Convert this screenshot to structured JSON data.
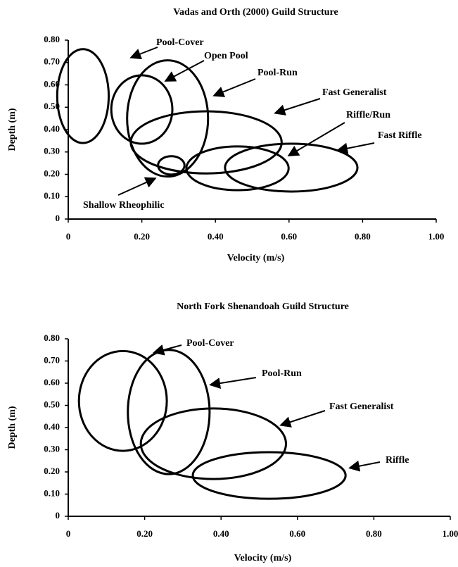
{
  "chart_data": [
    {
      "type": "ellipse",
      "title": "Vadas and Orth (2000) Guild Structure",
      "x_label": "Velocity (m/s)",
      "y_label": "Depth (m)",
      "color": "#000000",
      "xlim": [
        0,
        1
      ],
      "ylim": [
        0,
        0.8
      ],
      "xticks": [
        0,
        {
          "value": 0.2,
          "label": "0.20"
        },
        {
          "value": 0.4,
          "label": "0.40"
        },
        {
          "value": 0.6,
          "label": "0.60"
        },
        {
          "value": 0.8,
          "label": "0.80"
        },
        {
          "value": 1,
          "label": "1.00"
        }
      ],
      "yticks": [
        0,
        {
          "value": 0.1,
          "label": "0.10"
        },
        {
          "value": 0.2,
          "label": "0.20"
        },
        {
          "value": 0.3,
          "label": "0.30"
        },
        {
          "value": 0.4,
          "label": "0.40"
        },
        {
          "value": 0.5,
          "label": "0.50"
        },
        {
          "value": 0.6,
          "label": "0.60"
        },
        {
          "value": 0.7,
          "label": "0.70"
        },
        {
          "value": 0.8,
          "label": "0.80"
        }
      ],
      "series": [
        {
          "name": "Pool-Cover",
          "cx": 0.04,
          "cy": 0.55,
          "rx": 0.07,
          "ry": 0.21
        },
        {
          "name": "Open Pool",
          "cx": 0.2,
          "cy": 0.49,
          "rx": 0.083,
          "ry": 0.153
        },
        {
          "name": "Pool-Run",
          "cx": 0.27,
          "cy": 0.45,
          "rx": 0.11,
          "ry": 0.26
        },
        {
          "name": "Fast Generalist",
          "cx": 0.375,
          "cy": 0.343,
          "rx": 0.205,
          "ry": 0.139
        },
        {
          "name": "Riffle/Run",
          "cx": 0.46,
          "cy": 0.227,
          "rx": 0.139,
          "ry": 0.098
        },
        {
          "name": "Fast Riffle",
          "cx": 0.606,
          "cy": 0.23,
          "rx": 0.18,
          "ry": 0.107
        },
        {
          "name": "Shallow Rheophilic",
          "cx": 0.28,
          "cy": 0.24,
          "rx": 0.036,
          "ry": 0.041
        }
      ]
    },
    {
      "type": "ellipse",
      "title": "North Fork Shenandoah Guild Structure",
      "x_label": "Velocity (m/s)",
      "y_label": "Depth (m)",
      "color": "#000000",
      "xlim": [
        0,
        1
      ],
      "ylim": [
        0,
        0.8
      ],
      "xticks": [
        0,
        {
          "value": 0.2,
          "label": "0.20"
        },
        {
          "value": 0.4,
          "label": "0.40"
        },
        {
          "value": 0.6,
          "label": "0.60"
        },
        {
          "value": 0.8,
          "label": "0.80"
        },
        {
          "value": 1,
          "label": "1.00"
        }
      ],
      "yticks": [
        0,
        {
          "value": 0.1,
          "label": "0.10"
        },
        {
          "value": 0.2,
          "label": "0.20"
        },
        {
          "value": 0.3,
          "label": "0.30"
        },
        {
          "value": 0.4,
          "label": "0.40"
        },
        {
          "value": 0.5,
          "label": "0.50"
        },
        {
          "value": 0.6,
          "label": "0.60"
        },
        {
          "value": 0.7,
          "label": "0.70"
        },
        {
          "value": 0.8,
          "label": "0.80"
        }
      ],
      "series": [
        {
          "name": "Pool-Cover",
          "cx": 0.143,
          "cy": 0.52,
          "rx": 0.115,
          "ry": 0.225
        },
        {
          "name": "Pool-Run",
          "cx": 0.263,
          "cy": 0.47,
          "rx": 0.107,
          "ry": 0.28
        },
        {
          "name": "Fast Generalist",
          "cx": 0.38,
          "cy": 0.327,
          "rx": 0.19,
          "ry": 0.159
        },
        {
          "name": "Riffle",
          "cx": 0.526,
          "cy": 0.184,
          "rx": 0.2,
          "ry": 0.105
        }
      ]
    }
  ]
}
